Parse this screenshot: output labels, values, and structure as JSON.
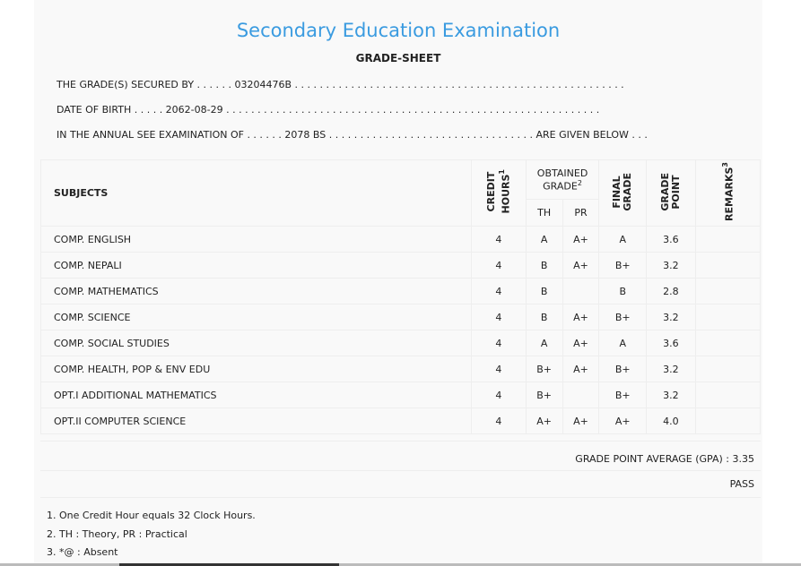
{
  "title": "Secondary Education Examination",
  "subtitle": "GRADE-SHEET",
  "lines": {
    "secured_by": "THE GRADE(S) SECURED BY . . . . . . 03204476B . . . . . . . . . . . . . . . . . . . . . . . . . . . . . . . . . . . . . . . . . . . . . . . . . . . . .",
    "dob": "DATE OF BIRTH . . . . . 2062-08-29 . . . . . . . . . . . . . . . . . . . . . . . . . . . . . . . . . . . . . . . . . . . . . . . . . . . . . . . . . . . .",
    "exam": "IN THE ANNUAL SEE EXAMINATION OF . . . . . . 2078 BS . . . . . . . . . . . . . . . . . . . . . . . . . . . . . . . . . ARE GIVEN BELOW . . ."
  },
  "headers": {
    "subjects": "SUBJECTS",
    "credit1": "CREDIT",
    "credit2": "HOURS",
    "credit_sup": "1",
    "obtained1": "OBTAINED",
    "obtained2": "GRADE",
    "obtained_sup": "2",
    "th": "TH",
    "pr": "PR",
    "final1": "FINAL",
    "final2": "GRADE",
    "gp1": "GRADE",
    "gp2": "POINT",
    "remarks": "REMARKS",
    "remarks_sup": "3"
  },
  "rows": [
    {
      "subject": "COMP. ENGLISH",
      "credit": "4",
      "th": "A",
      "pr": "A+",
      "final": "A",
      "gp": "3.6",
      "remarks": ""
    },
    {
      "subject": "COMP. NEPALI",
      "credit": "4",
      "th": "B",
      "pr": "A+",
      "final": "B+",
      "gp": "3.2",
      "remarks": ""
    },
    {
      "subject": "COMP. MATHEMATICS",
      "credit": "4",
      "th": "B",
      "pr": "",
      "final": "B",
      "gp": "2.8",
      "remarks": ""
    },
    {
      "subject": "COMP. SCIENCE",
      "credit": "4",
      "th": "B",
      "pr": "A+",
      "final": "B+",
      "gp": "3.2",
      "remarks": ""
    },
    {
      "subject": "COMP. SOCIAL STUDIES",
      "credit": "4",
      "th": "A",
      "pr": "A+",
      "final": "A",
      "gp": "3.6",
      "remarks": ""
    },
    {
      "subject": "COMP. HEALTH, POP & ENV EDU",
      "credit": "4",
      "th": "B+",
      "pr": "A+",
      "final": "B+",
      "gp": "3.2",
      "remarks": ""
    },
    {
      "subject": "OPT.I ADDITIONAL MATHEMATICS",
      "credit": "4",
      "th": "B+",
      "pr": "",
      "final": "B+",
      "gp": "3.2",
      "remarks": ""
    },
    {
      "subject": "OPT.II COMPUTER SCIENCE",
      "credit": "4",
      "th": "A+",
      "pr": "A+",
      "final": "A+",
      "gp": "4.0",
      "remarks": ""
    }
  ],
  "gpa": "GRADE POINT AVERAGE (GPA) : 3.35",
  "result": "PASS",
  "notes": [
    "1. One Credit Hour equals 32 Clock Hours.",
    "2. TH : Theory, PR : Practical",
    "3. *@ : Absent"
  ]
}
